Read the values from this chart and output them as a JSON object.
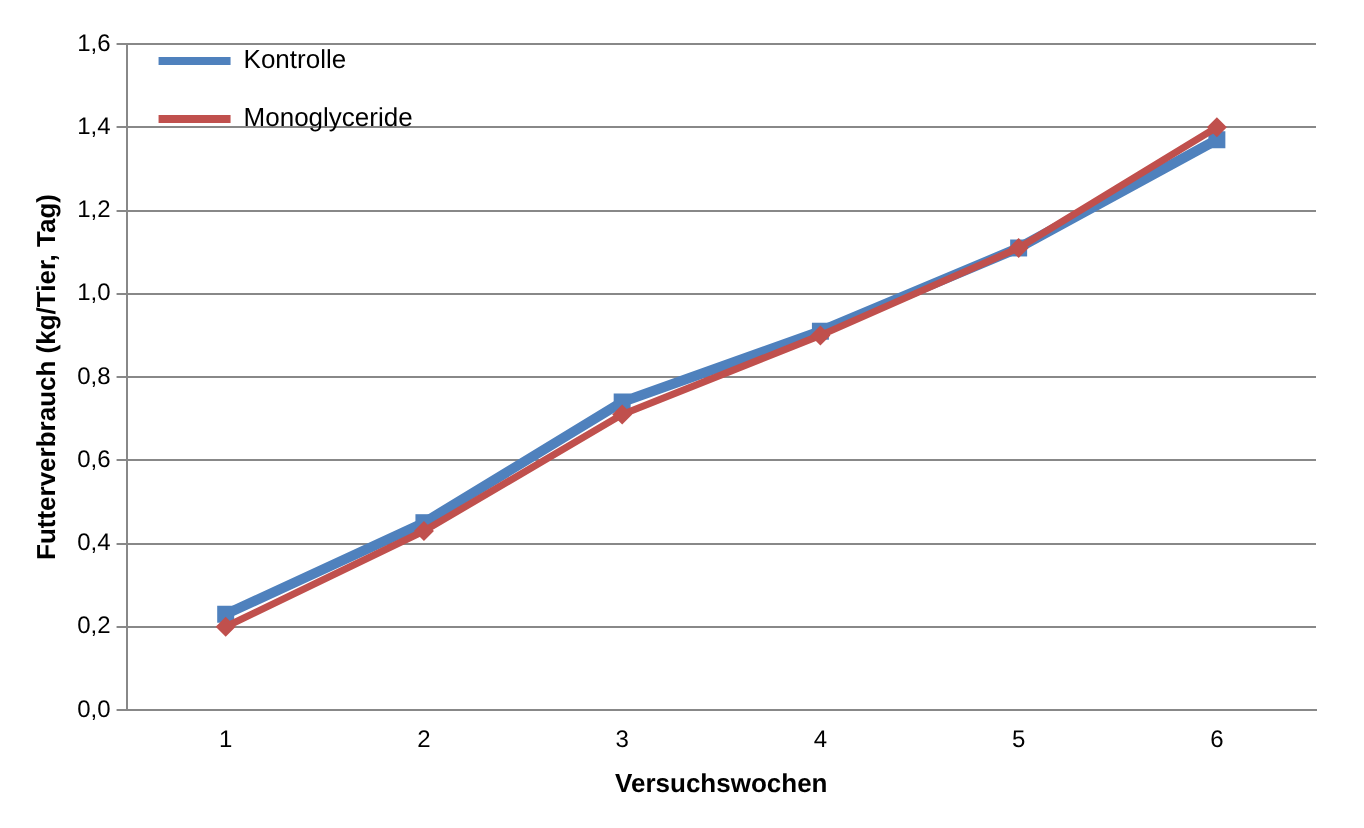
{
  "chart_data": {
    "type": "line",
    "xlabel": "Versuchswochen",
    "ylabel": "Futterverbrauch (kg/Tier, Tag)",
    "categories": [
      "1",
      "2",
      "3",
      "4",
      "5",
      "6"
    ],
    "series": [
      {
        "name": "Kontrolle",
        "color": "#4f81bd",
        "marker": "square",
        "values": [
          0.23,
          0.45,
          0.74,
          0.91,
          1.11,
          1.37
        ]
      },
      {
        "name": "Monoglyceride",
        "color": "#c0504d",
        "marker": "diamond",
        "values": [
          0.2,
          0.43,
          0.71,
          0.9,
          1.11,
          1.4
        ]
      }
    ],
    "ylim": [
      0,
      1.6
    ],
    "yticks": [
      {
        "value": 0,
        "label": "0,0"
      },
      {
        "value": 0.2,
        "label": "0,2"
      },
      {
        "value": 0.4,
        "label": "0,4"
      },
      {
        "value": 0.6,
        "label": "0,6"
      },
      {
        "value": 0.8,
        "label": "0,8"
      },
      {
        "value": 1.0,
        "label": "1,0"
      },
      {
        "value": 1.2,
        "label": "1,2"
      },
      {
        "value": 1.4,
        "label": "1,4"
      },
      {
        "value": 1.6,
        "label": "1,6"
      }
    ],
    "grid": "y",
    "legend": "top left",
    "line_style": "solid"
  }
}
